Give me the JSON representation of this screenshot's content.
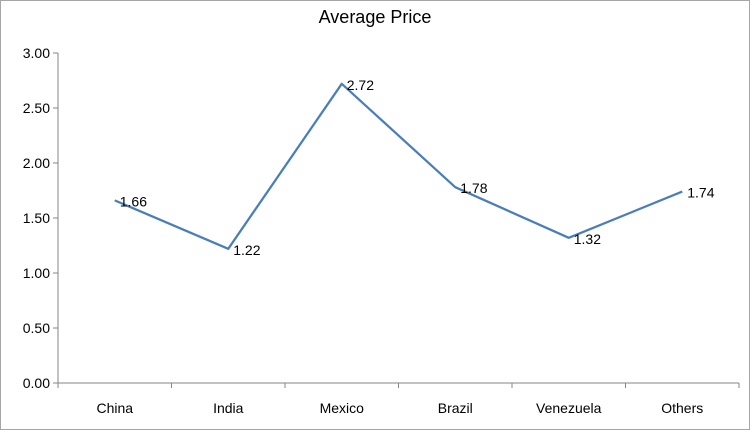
{
  "chart_data": {
    "type": "line",
    "title": "Average Price",
    "categories": [
      "China",
      "India",
      "Mexico",
      "Brazil",
      "Venezuela",
      "Others"
    ],
    "series": [
      {
        "values": [
          1.66,
          1.22,
          2.72,
          1.78,
          1.32,
          1.74
        ],
        "color": "#4a7ebb"
      }
    ],
    "data_labels": [
      "1.66",
      "1.22",
      "2.72",
      "1.78",
      "1.32",
      "1.74"
    ],
    "ylim": [
      0,
      3
    ],
    "yticks": [
      0,
      0.5,
      1,
      1.5,
      2,
      2.5,
      3
    ],
    "ytick_labels": [
      "0.00",
      "0.50",
      "1.00",
      "1.50",
      "2.00",
      "2.50",
      "3.00"
    ],
    "grid": false,
    "legend": "none",
    "xlabel": "",
    "ylabel": ""
  }
}
